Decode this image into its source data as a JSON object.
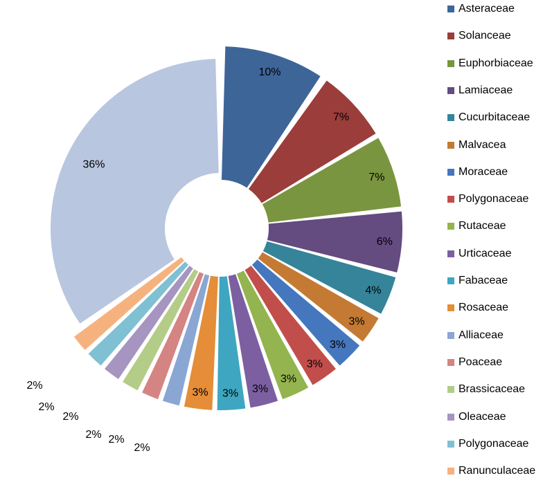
{
  "chart_data": {
    "type": "pie",
    "exploded": true,
    "start": "12 o'clock, clockwise",
    "labels_format": "percent",
    "legend_position": "right",
    "slices": [
      {
        "name": "Asteraceae",
        "value": 10,
        "label": "10%",
        "color": "#3E6598"
      },
      {
        "name": "Solanceae",
        "value": 7,
        "label": "7%",
        "color": "#9B3D3A"
      },
      {
        "name": "Euphorbiaceae",
        "value": 7,
        "label": "7%",
        "color": "#7A9540"
      },
      {
        "name": "Lamiaceae",
        "value": 6,
        "label": "6%",
        "color": "#644B80"
      },
      {
        "name": "Cucurbitaceae",
        "value": 4,
        "label": "4%",
        "color": "#35849A"
      },
      {
        "name": "Malvacea",
        "value": 3,
        "label": "3%",
        "color": "#C47A33"
      },
      {
        "name": "Moraceae",
        "value": 3,
        "label": "3%",
        "color": "#4577BE"
      },
      {
        "name": "Polygonaceae",
        "value": 3,
        "label": "3%",
        "color": "#C24E4B"
      },
      {
        "name": "Rutaceae",
        "value": 3,
        "label": "3%",
        "color": "#93B44E"
      },
      {
        "name": "Urticaceae",
        "value": 3,
        "label": "3%",
        "color": "#7C5FA0"
      },
      {
        "name": "Fabaceae",
        "value": 3,
        "label": "3%",
        "color": "#3EA6C0"
      },
      {
        "name": "Rosaceae",
        "value": 3,
        "label": "3%",
        "color": "#E58D38"
      },
      {
        "name": "Alliaceae",
        "value": 2,
        "label": "2%",
        "color": "#8AA6D3"
      },
      {
        "name": "Poaceae",
        "value": 2,
        "label": "2%",
        "color": "#D48483"
      },
      {
        "name": "Brassicaceae",
        "value": 2,
        "label": "2%",
        "color": "#B3CC87"
      },
      {
        "name": "Oleaceae",
        "value": 2,
        "label": "2%",
        "color": "#A595C0"
      },
      {
        "name": "Polygonaceae",
        "value": 2,
        "label": "2%",
        "color": "#7FC0D3"
      },
      {
        "name": "Ranunculaceae",
        "value": 2,
        "label": "2%",
        "color": "#F6B27E"
      },
      {
        "name": "",
        "value": 36,
        "label": "36%",
        "color": "#B8C6DF"
      }
    ]
  }
}
